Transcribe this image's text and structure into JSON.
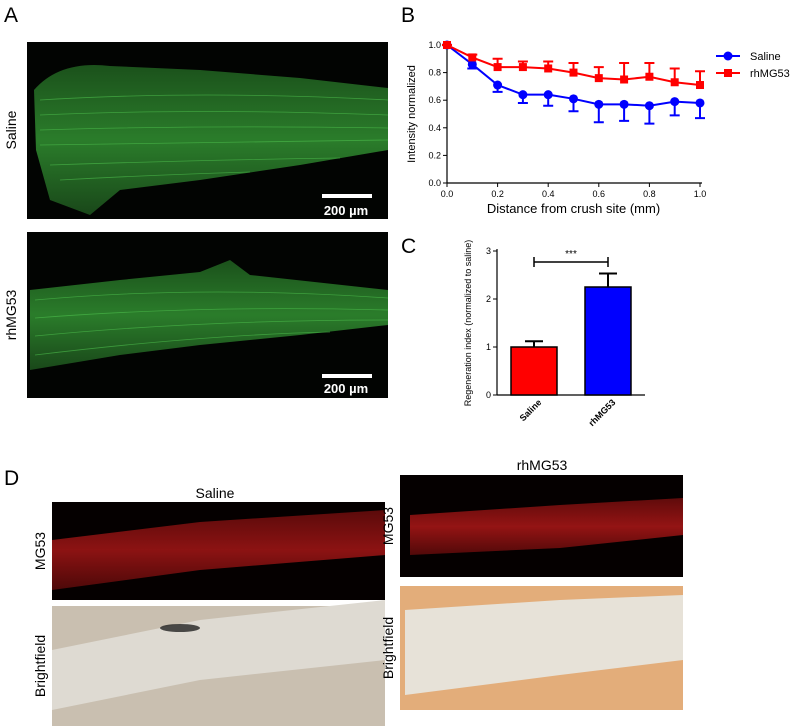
{
  "panel_labels": [
    "A",
    "B",
    "C",
    "D"
  ],
  "panel_a": {
    "row_labels": [
      "Saline",
      "rhMG53"
    ],
    "scale_bars": [
      "200 µm",
      "200 µm"
    ]
  },
  "panel_d": {
    "column_titles": [
      "Saline",
      "rhMG53"
    ],
    "row_labels": [
      "MG53",
      "Brightfield",
      "MG53",
      "Brightfield"
    ]
  },
  "chart_data": [
    {
      "type": "line",
      "xlabel": "Distance from crush site (mm)",
      "ylabel": "Intensity normalized",
      "x": [
        0,
        0.1,
        0.2,
        0.3,
        0.4,
        0.5,
        0.6,
        0.7,
        0.8,
        0.9,
        1.0
      ],
      "series": [
        {
          "name": "Saline",
          "color": "#0000ff",
          "marker": "circle",
          "values": [
            1.0,
            0.86,
            0.71,
            0.64,
            0.64,
            0.61,
            0.57,
            0.57,
            0.56,
            0.59,
            0.58
          ],
          "errors": [
            0,
            0.03,
            0.05,
            0.06,
            0.08,
            0.09,
            0.13,
            0.12,
            0.13,
            0.1,
            0.11
          ]
        },
        {
          "name": "rhMG53",
          "color": "#ff0000",
          "marker": "square",
          "values": [
            1.0,
            0.91,
            0.84,
            0.84,
            0.83,
            0.8,
            0.76,
            0.75,
            0.77,
            0.73,
            0.71
          ],
          "errors": [
            0,
            0.02,
            0.06,
            0.04,
            0.05,
            0.07,
            0.08,
            0.12,
            0.1,
            0.1,
            0.1
          ]
        }
      ],
      "xlim": [
        0,
        1.0
      ],
      "xticks": [
        {
          "value": 0,
          "label": "0.0"
        },
        0.2,
        0.4,
        0.6,
        0.8,
        {
          "value": 1.0,
          "label": "1.0"
        }
      ],
      "ylim": [
        0,
        1.0
      ],
      "yticks": [
        {
          "value": 0,
          "label": "0.0"
        },
        0.2,
        0.4,
        0.6,
        0.8,
        {
          "value": 1.0,
          "label": "1.0"
        }
      ],
      "legend": "right"
    },
    {
      "type": "bar",
      "ylabel": "Regeneration index (normalized to saline)",
      "categories": [
        "Saline",
        "rhMG53"
      ],
      "values": [
        1.0,
        2.25
      ],
      "errors": [
        0.12,
        0.28
      ],
      "colors": [
        "#ff0000",
        "#0000ff"
      ],
      "ylim": [
        0,
        3
      ],
      "yticks": [
        0,
        1,
        2,
        3
      ],
      "annotation": "***"
    }
  ]
}
